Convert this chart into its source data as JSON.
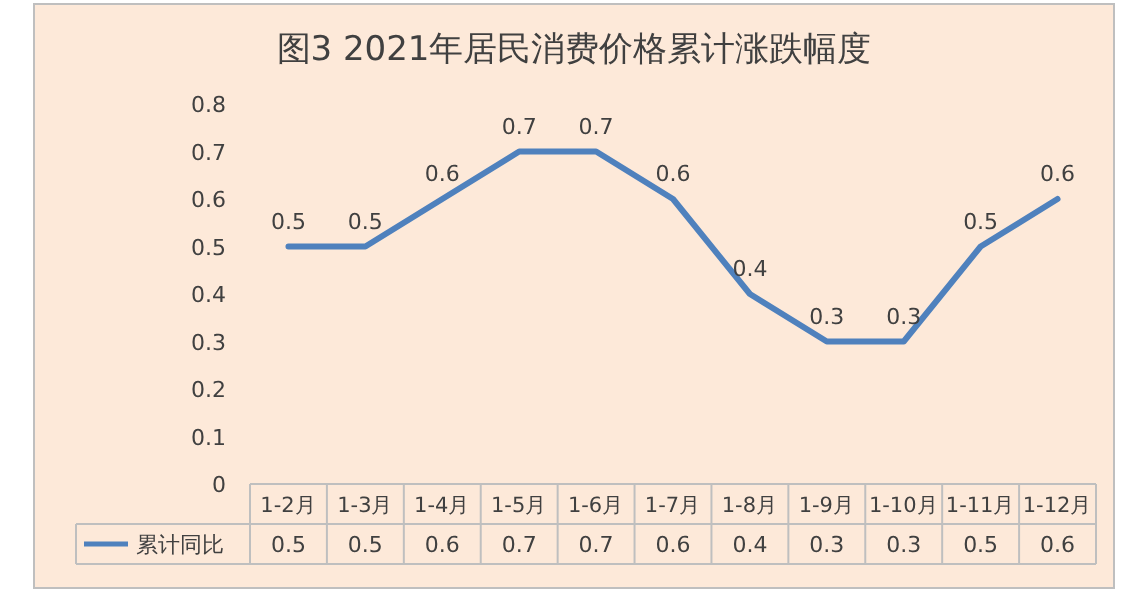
{
  "chart_data": {
    "type": "line",
    "title": "图3  2021年居民消费价格累计涨跌幅度",
    "categories": [
      "1-2月",
      "1-3月",
      "1-4月",
      "1-5月",
      "1-6月",
      "1-7月",
      "1-8月",
      "1-9月",
      "1-10月",
      "1-11月",
      "1-12月"
    ],
    "series": [
      {
        "name": "累计同比",
        "color": "#4f81bd",
        "values": [
          0.5,
          0.5,
          0.6,
          0.7,
          0.7,
          0.6,
          0.4,
          0.3,
          0.3,
          0.5,
          0.6
        ],
        "value_labels": [
          "0.5",
          "0.5",
          "0.6",
          "0.7",
          "0.7",
          "0.6",
          "0.4",
          "0.3",
          "0.3",
          "0.5",
          "0.6"
        ]
      }
    ],
    "ylim": [
      0,
      0.8
    ],
    "yticks": [
      0,
      0.1,
      0.2,
      0.3,
      0.4,
      0.5,
      0.6,
      0.7,
      0.8
    ],
    "annotations": [
      "0.5",
      "0.5",
      "0.6",
      "0.7",
      "0.7",
      "0.6",
      "0.4",
      "0.3",
      "0.3",
      "0.5",
      "0.6"
    ],
    "legend": "bottom",
    "marker": "none",
    "line_style": "solid"
  }
}
